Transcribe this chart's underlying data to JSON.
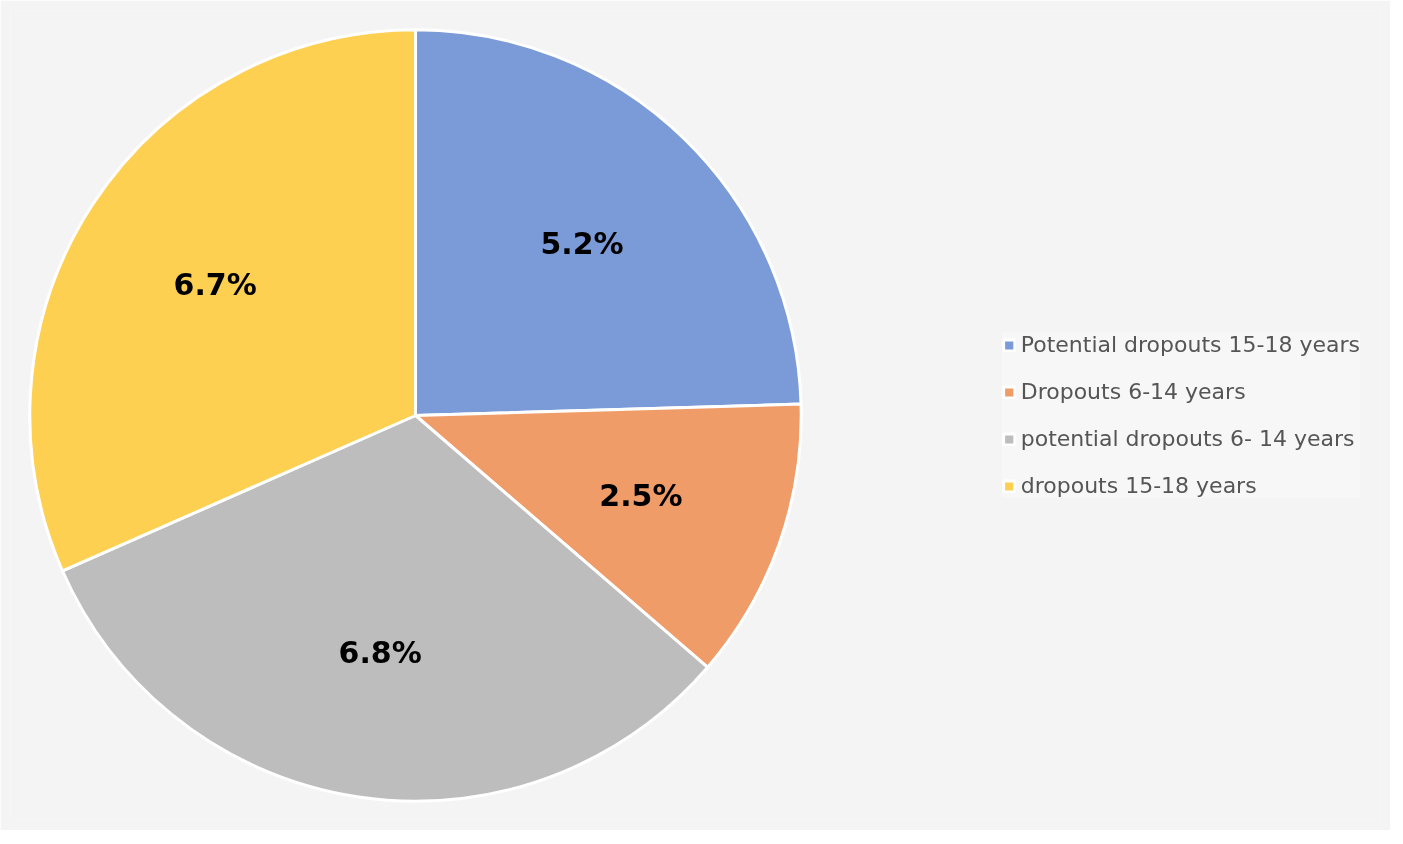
{
  "chart_data": {
    "type": "pie",
    "categories": [
      "Potential dropouts 15-18 years",
      "Dropouts 6-14 years",
      "potential dropouts 6- 14 years",
      "dropouts 15-18 years"
    ],
    "values": [
      5.2,
      2.5,
      6.8,
      6.7
    ],
    "colors": [
      "#7b9bd8",
      "#ef9c68",
      "#bdbdbd",
      "#fed052"
    ],
    "value_labels": [
      "5.2%",
      "2.5%",
      "6.8%",
      "6.7%"
    ],
    "legend": "right"
  }
}
